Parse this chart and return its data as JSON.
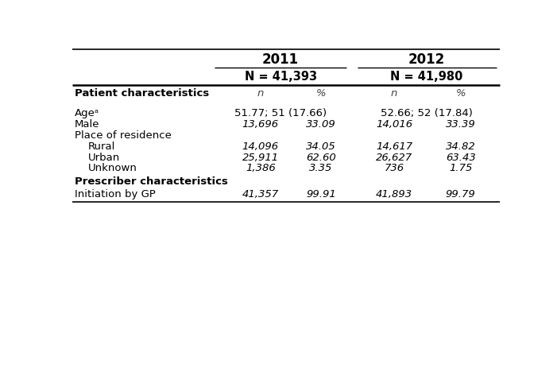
{
  "title_col1": "2011",
  "title_col2": "2012",
  "subtitle_col1": "N = 41,393",
  "subtitle_col2": "N = 41,980",
  "col_headers": [
    "n",
    "%",
    "n",
    "%"
  ],
  "rows": [
    {
      "label": "Patient characteristics",
      "bold": true,
      "indent": 0,
      "vals": [
        "",
        "",
        "",
        ""
      ],
      "italic": false,
      "age_row": false
    },
    {
      "label": "Ageᵃ",
      "bold": false,
      "indent": 0,
      "vals": [
        "51.77; 51 (17.66)",
        "",
        "52.66; 52 (17.84)",
        ""
      ],
      "italic": false,
      "age_row": true
    },
    {
      "label": "Male",
      "bold": false,
      "indent": 0,
      "vals": [
        "13,696",
        "33.09",
        "14,016",
        "33.39"
      ],
      "italic": true,
      "age_row": false
    },
    {
      "label": "Place of residence",
      "bold": false,
      "indent": 0,
      "vals": [
        "",
        "",
        "",
        ""
      ],
      "italic": false,
      "age_row": false
    },
    {
      "label": "Rural",
      "bold": false,
      "indent": 1,
      "vals": [
        "14,096",
        "34.05",
        "14,617",
        "34.82"
      ],
      "italic": true,
      "age_row": false
    },
    {
      "label": "Urban",
      "bold": false,
      "indent": 1,
      "vals": [
        "25,911",
        "62.60",
        "26,627",
        "63.43"
      ],
      "italic": true,
      "age_row": false
    },
    {
      "label": "Unknown",
      "bold": false,
      "indent": 1,
      "vals": [
        "1,386",
        "3.35",
        "736",
        "1.75"
      ],
      "italic": true,
      "age_row": false
    },
    {
      "label": "Prescriber characteristics",
      "bold": true,
      "indent": 0,
      "vals": [
        "",
        "",
        "",
        ""
      ],
      "italic": false,
      "age_row": false
    },
    {
      "label": "Initiation by GP",
      "bold": false,
      "indent": 0,
      "vals": [
        "41,357",
        "99.91",
        "41,893",
        "99.79"
      ],
      "italic": true,
      "age_row": false
    }
  ],
  "bg_color": "#ffffff",
  "text_color": "#000000",
  "line_color": "#000000",
  "font_size": 9.5,
  "header_font_size": 10.5
}
